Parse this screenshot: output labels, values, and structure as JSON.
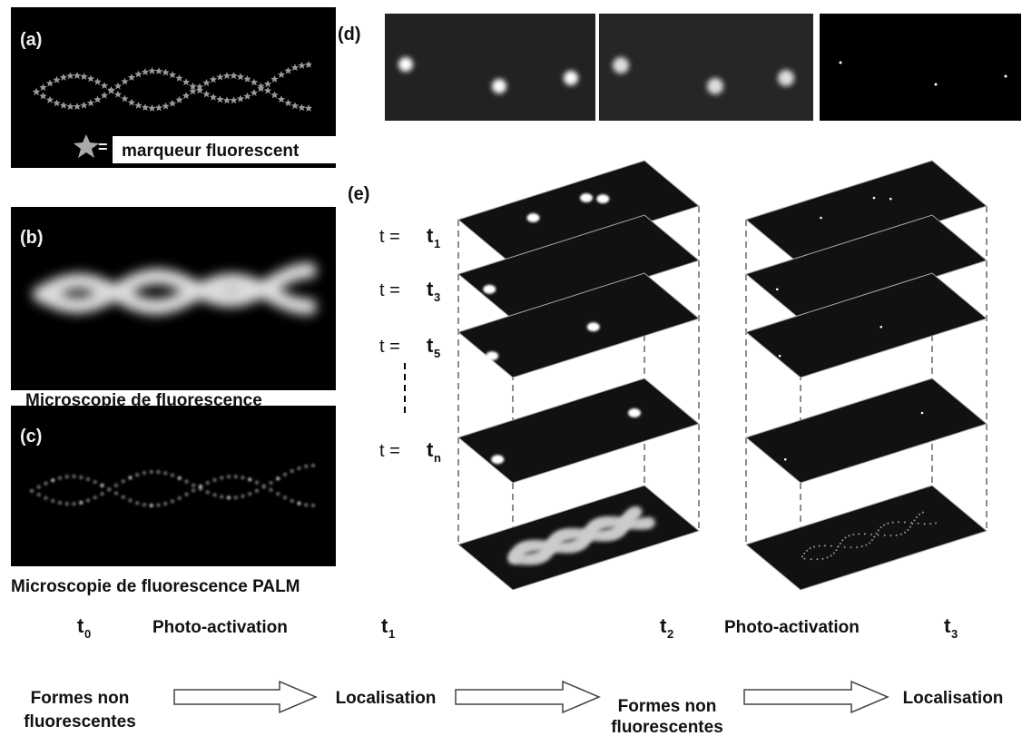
{
  "panels": {
    "a": {
      "label": "(a)",
      "legend_equals": "=",
      "legend_text": "marqueur fluorescent"
    },
    "b": {
      "label": "(b)",
      "caption": "Microscopie de fluorescence"
    },
    "c": {
      "label": "(c)",
      "caption": "Microscopie de fluorescence PALM"
    },
    "d": {
      "label": "(d)"
    },
    "e": {
      "label": "(e)",
      "frames": [
        {
          "prefix": "t =",
          "symbol": "t",
          "subscript": "1"
        },
        {
          "prefix": "t =",
          "symbol": "t",
          "subscript": "3"
        },
        {
          "prefix": "t =",
          "symbol": "t",
          "subscript": "5"
        },
        {
          "prefix": "t =",
          "symbol": "t",
          "subscript": "n"
        }
      ]
    }
  },
  "timeline": {
    "times": [
      {
        "symbol": "t",
        "subscript": "0"
      },
      {
        "symbol": "t",
        "subscript": "1"
      },
      {
        "symbol": "t",
        "subscript": "2"
      },
      {
        "symbol": "t",
        "subscript": "3"
      }
    ],
    "actions": [
      "Photo-activation",
      "Photo-activation"
    ],
    "states": [
      {
        "lines": [
          "Formes non",
          "fluorescentes"
        ]
      },
      {
        "lines": [
          "Localisation"
        ]
      },
      {
        "lines": [
          "Formes non",
          "fluorescentes"
        ]
      },
      {
        "lines": [
          "Localisation"
        ]
      }
    ]
  }
}
